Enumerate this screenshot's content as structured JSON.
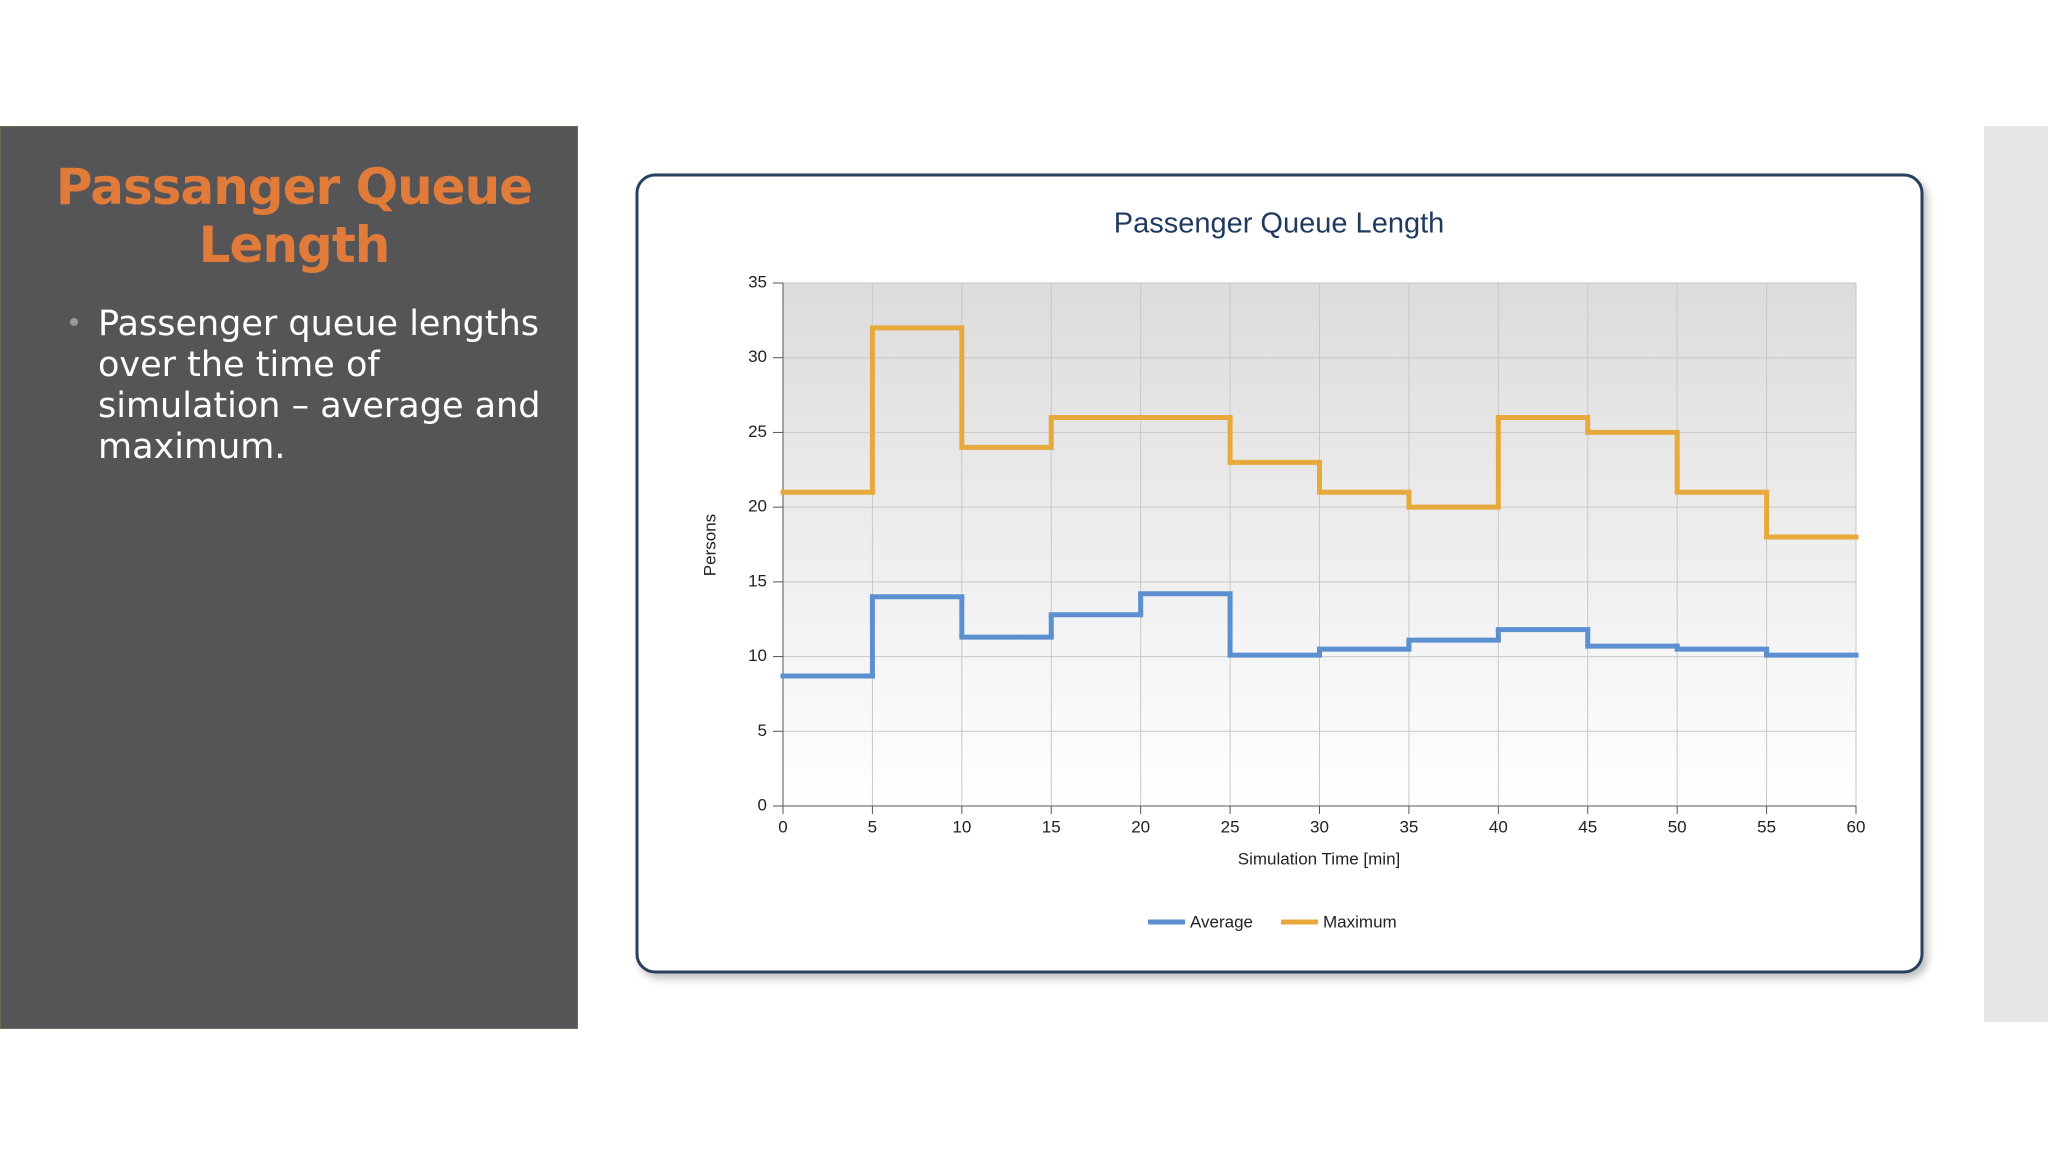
{
  "slide": {
    "title": "Passanger Queue Length",
    "bullet": "Passenger queue lengths over the time of simulation – average and maximum."
  },
  "chart_data": {
    "type": "step",
    "title": "Passenger Queue Length",
    "x_label": "Simulation Time [min]",
    "y_label": "Persons",
    "x": [
      0,
      5,
      10,
      15,
      20,
      25,
      30,
      35,
      40,
      45,
      50,
      55
    ],
    "series": [
      {
        "name": "Average",
        "color": "#5b8fd0",
        "values": [
          8.7,
          14,
          11.3,
          12.8,
          14.2,
          10.1,
          10.5,
          11.1,
          11.8,
          10.7,
          10.5,
          10.1
        ]
      },
      {
        "name": "Maximum",
        "color": "#e8a93c",
        "values": [
          21,
          32,
          24,
          26,
          26,
          23,
          21,
          20,
          26,
          25,
          21,
          18
        ]
      }
    ],
    "xlim": [
      0,
      60
    ],
    "xticks": [
      0,
      5,
      10,
      15,
      20,
      25,
      30,
      35,
      40,
      45,
      50,
      55,
      60
    ],
    "ylim": [
      0,
      35
    ],
    "yticks": [
      0,
      5,
      10,
      15,
      20,
      25,
      30,
      35
    ],
    "grid": true,
    "legend": "bottom"
  }
}
